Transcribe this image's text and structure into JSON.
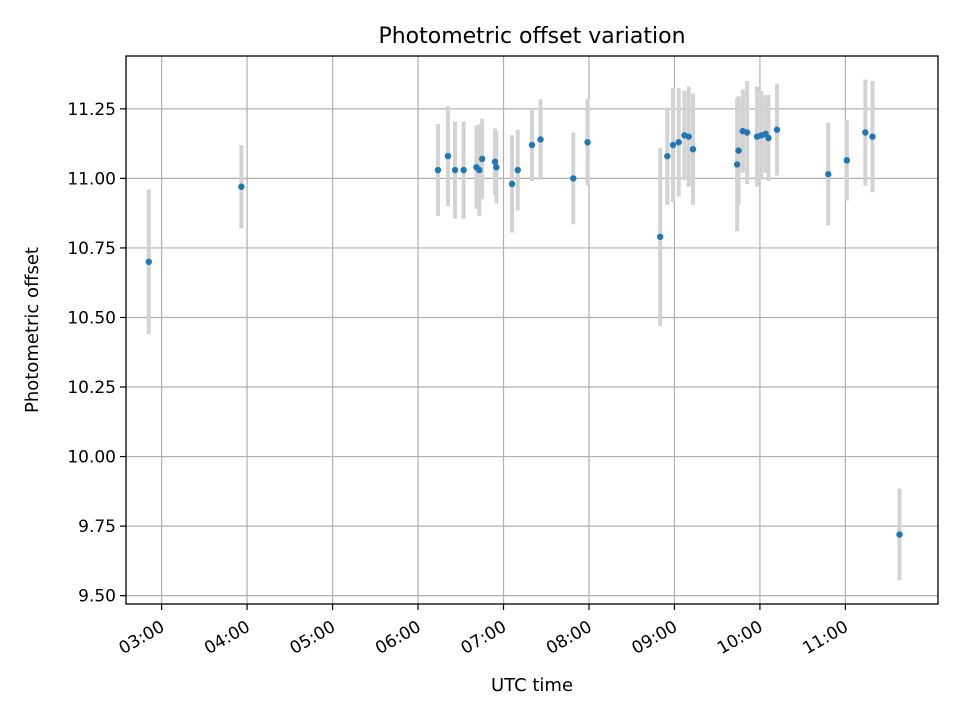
{
  "chart_data": {
    "type": "scatter",
    "title": "Photometric offset variation",
    "xlabel": "UTC time",
    "ylabel": "Photometric offset",
    "xlim": [
      "02:35",
      "12:05"
    ],
    "ylim": [
      9.47,
      11.44
    ],
    "xticks": [
      "03:00",
      "04:00",
      "05:00",
      "06:00",
      "07:00",
      "08:00",
      "09:00",
      "10:00",
      "11:00"
    ],
    "yticks": [
      "9.50",
      "9.75",
      "10.00",
      "10.25",
      "10.50",
      "10.75",
      "11.00",
      "11.25"
    ],
    "grid": true,
    "colors": {
      "points": "#1f77b4",
      "errorbars": "#d3d3d3",
      "grid": "#b0b0b0"
    },
    "points": [
      {
        "x": "02:51",
        "y": 10.7,
        "err": 0.26
      },
      {
        "x": "03:56",
        "y": 10.97,
        "err": 0.15
      },
      {
        "x": "06:14",
        "y": 11.03,
        "err": 0.165
      },
      {
        "x": "06:21",
        "y": 11.08,
        "err": 0.18
      },
      {
        "x": "06:26",
        "y": 11.03,
        "err": 0.175
      },
      {
        "x": "06:32",
        "y": 11.03,
        "err": 0.175
      },
      {
        "x": "06:41",
        "y": 11.04,
        "err": 0.15
      },
      {
        "x": "06:43",
        "y": 11.03,
        "err": 0.165
      },
      {
        "x": "06:45",
        "y": 11.07,
        "err": 0.145
      },
      {
        "x": "06:54",
        "y": 11.06,
        "err": 0.12
      },
      {
        "x": "06:55",
        "y": 11.04,
        "err": 0.13
      },
      {
        "x": "07:06",
        "y": 10.98,
        "err": 0.175
      },
      {
        "x": "07:10",
        "y": 11.03,
        "err": 0.145
      },
      {
        "x": "07:20",
        "y": 11.12,
        "err": 0.13
      },
      {
        "x": "07:26",
        "y": 11.14,
        "err": 0.145
      },
      {
        "x": "07:49",
        "y": 11.0,
        "err": 0.165
      },
      {
        "x": "07:59",
        "y": 11.13,
        "err": 0.155
      },
      {
        "x": "08:50",
        "y": 10.79,
        "err": 0.32
      },
      {
        "x": "08:55",
        "y": 11.08,
        "err": 0.175
      },
      {
        "x": "08:59",
        "y": 11.12,
        "err": 0.205
      },
      {
        "x": "09:03",
        "y": 11.13,
        "err": 0.195
      },
      {
        "x": "09:07",
        "y": 11.155,
        "err": 0.16
      },
      {
        "x": "09:10",
        "y": 11.15,
        "err": 0.18
      },
      {
        "x": "09:13",
        "y": 11.105,
        "err": 0.2
      },
      {
        "x": "09:44",
        "y": 11.05,
        "err": 0.24
      },
      {
        "x": "09:45",
        "y": 11.1,
        "err": 0.195
      },
      {
        "x": "09:48",
        "y": 11.17,
        "err": 0.15
      },
      {
        "x": "09:51",
        "y": 11.165,
        "err": 0.185
      },
      {
        "x": "09:58",
        "y": 11.15,
        "err": 0.18
      },
      {
        "x": "10:01",
        "y": 11.155,
        "err": 0.16
      },
      {
        "x": "10:04",
        "y": 11.16,
        "err": 0.14
      },
      {
        "x": "10:06",
        "y": 11.145,
        "err": 0.155
      },
      {
        "x": "10:12",
        "y": 11.175,
        "err": 0.165
      },
      {
        "x": "10:48",
        "y": 11.015,
        "err": 0.185
      },
      {
        "x": "11:01",
        "y": 11.065,
        "err": 0.145
      },
      {
        "x": "11:14",
        "y": 11.165,
        "err": 0.19
      },
      {
        "x": "11:19",
        "y": 11.15,
        "err": 0.2
      },
      {
        "x": "11:38",
        "y": 9.72,
        "err": 0.165
      }
    ]
  }
}
